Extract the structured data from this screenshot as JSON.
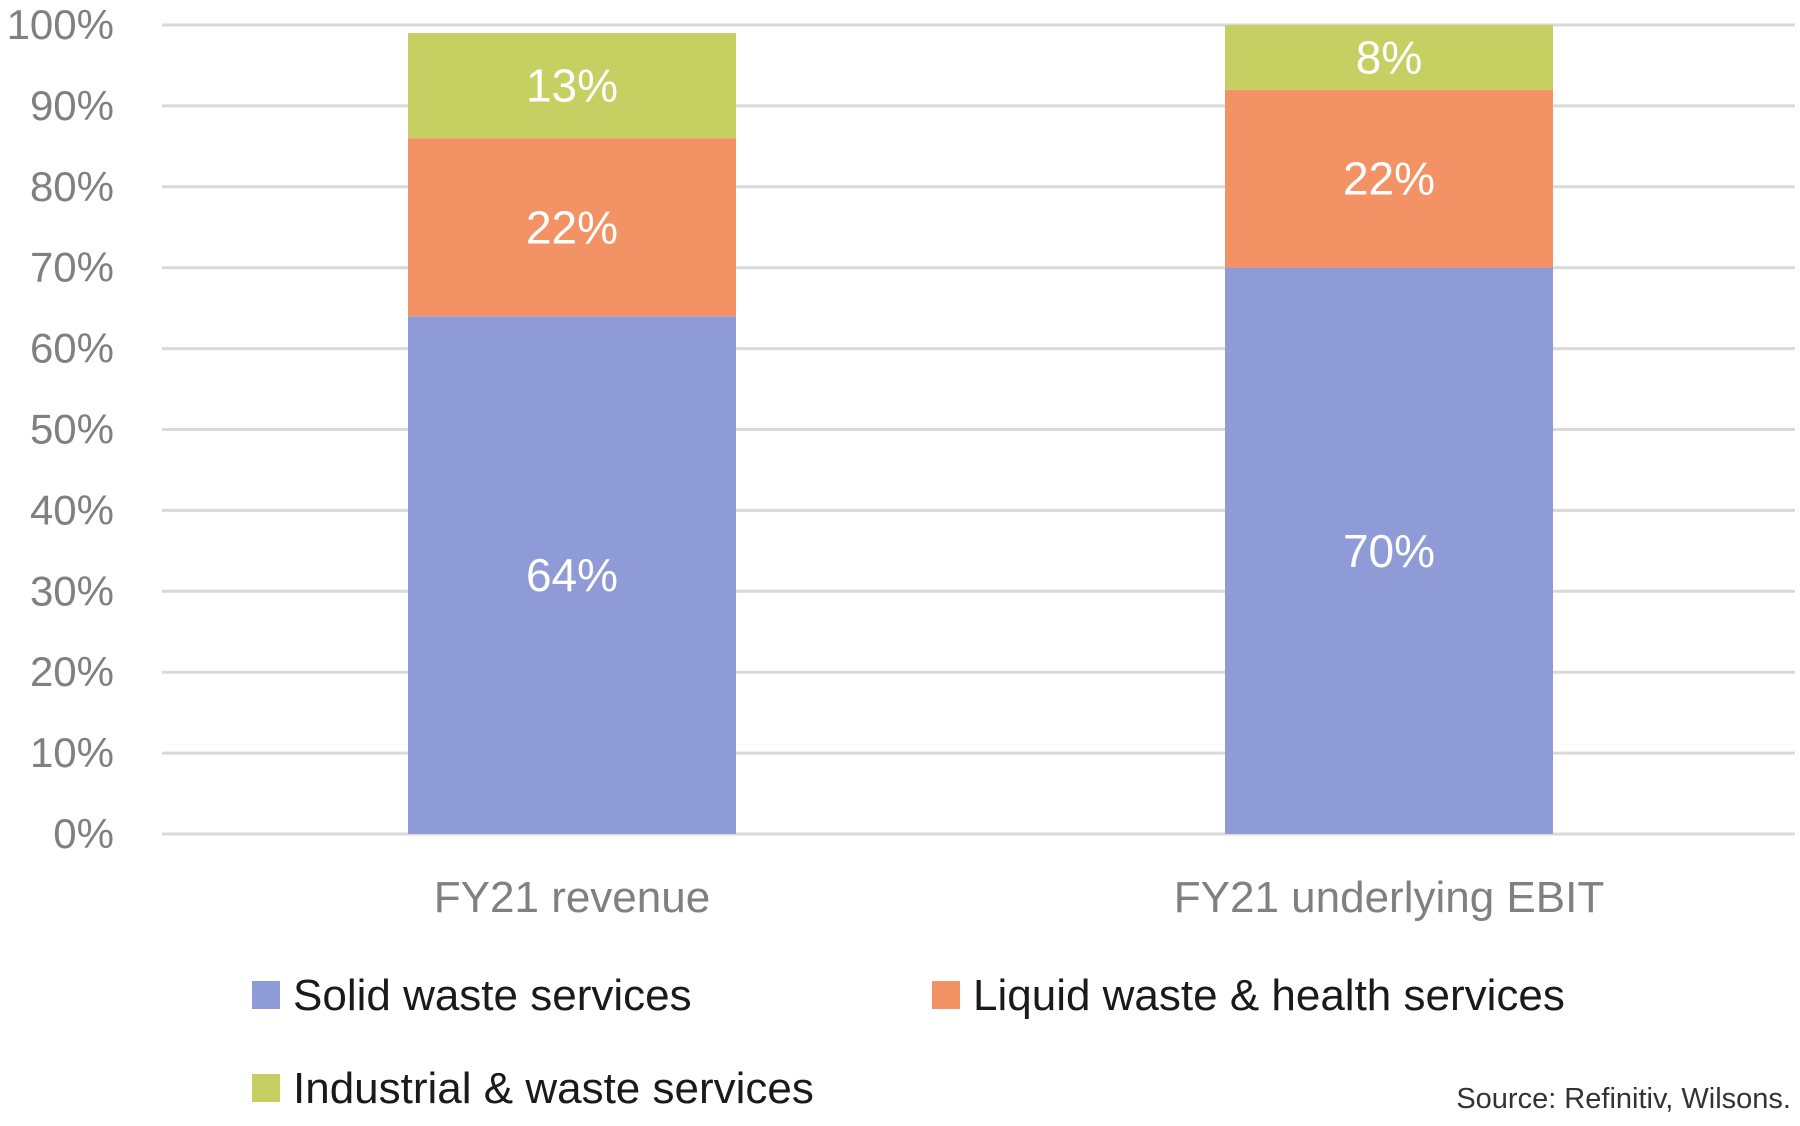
{
  "chart_data": {
    "type": "bar",
    "stacked": true,
    "categories": [
      "FY21 revenue",
      "FY21 underlying EBIT"
    ],
    "series": [
      {
        "name": "Solid waste services",
        "values": [
          64,
          70
        ],
        "labels": [
          "64%",
          "70%"
        ],
        "color": "#8e9bd6"
      },
      {
        "name": "Liquid waste & health services",
        "values": [
          22,
          22
        ],
        "labels": [
          "22%",
          "22%"
        ],
        "color": "#f39365"
      },
      {
        "name": "Industrial & waste services",
        "values": [
          13,
          8
        ],
        "labels": [
          "13%",
          "8%"
        ],
        "color": "#c5cf62"
      }
    ],
    "ylim": [
      0,
      100
    ],
    "yticks": [
      0,
      10,
      20,
      30,
      40,
      50,
      60,
      70,
      80,
      90,
      100
    ],
    "ytick_labels": [
      "0%",
      "10%",
      "20%",
      "30%",
      "40%",
      "50%",
      "60%",
      "70%",
      "80%",
      "90%",
      "100%"
    ],
    "grid": true,
    "legend_position": "bottom",
    "source": "Source: Refinitiv, Wilsons.",
    "colors": {
      "grid": "#d9d9d9",
      "tick_text": "#808080",
      "data_label_text": "#ffffff",
      "legend_text": "#1a1a1a"
    }
  }
}
